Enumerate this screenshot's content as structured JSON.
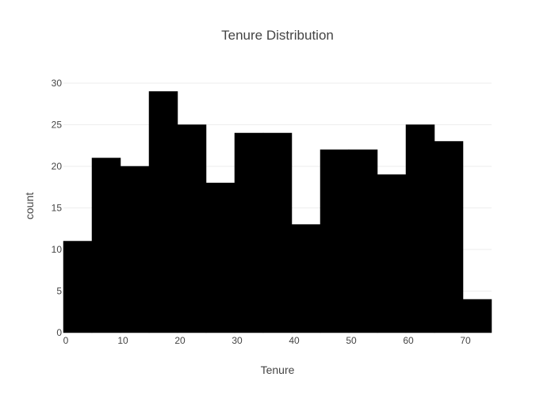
{
  "chart_data": {
    "type": "bar",
    "title": "Tenure Distribution",
    "xlabel": "Tenure",
    "ylabel": "count",
    "bin_width": 5,
    "bins": [
      {
        "start": 0,
        "end": 5,
        "count": 11
      },
      {
        "start": 5,
        "end": 10,
        "count": 21
      },
      {
        "start": 10,
        "end": 15,
        "count": 20
      },
      {
        "start": 15,
        "end": 20,
        "count": 29
      },
      {
        "start": 20,
        "end": 25,
        "count": 25
      },
      {
        "start": 25,
        "end": 30,
        "count": 18
      },
      {
        "start": 30,
        "end": 35,
        "count": 24
      },
      {
        "start": 35,
        "end": 40,
        "count": 24
      },
      {
        "start": 40,
        "end": 45,
        "count": 13
      },
      {
        "start": 45,
        "end": 50,
        "count": 22
      },
      {
        "start": 50,
        "end": 55,
        "count": 22
      },
      {
        "start": 55,
        "end": 60,
        "count": 19
      },
      {
        "start": 60,
        "end": 65,
        "count": 25
      },
      {
        "start": 65,
        "end": 70,
        "count": 23
      },
      {
        "start": 70,
        "end": 75,
        "count": 4
      }
    ],
    "xlim": [
      0,
      75
    ],
    "ylim": [
      0,
      30
    ],
    "x_ticks": [
      0,
      10,
      20,
      30,
      40,
      50,
      60,
      70
    ],
    "y_ticks": [
      0,
      5,
      10,
      15,
      20,
      25,
      30
    ],
    "grid": true,
    "bar_color": "#000000",
    "bar_outline_color": "#000000",
    "grid_color": "#eeeeee",
    "text_color": "#444444"
  }
}
